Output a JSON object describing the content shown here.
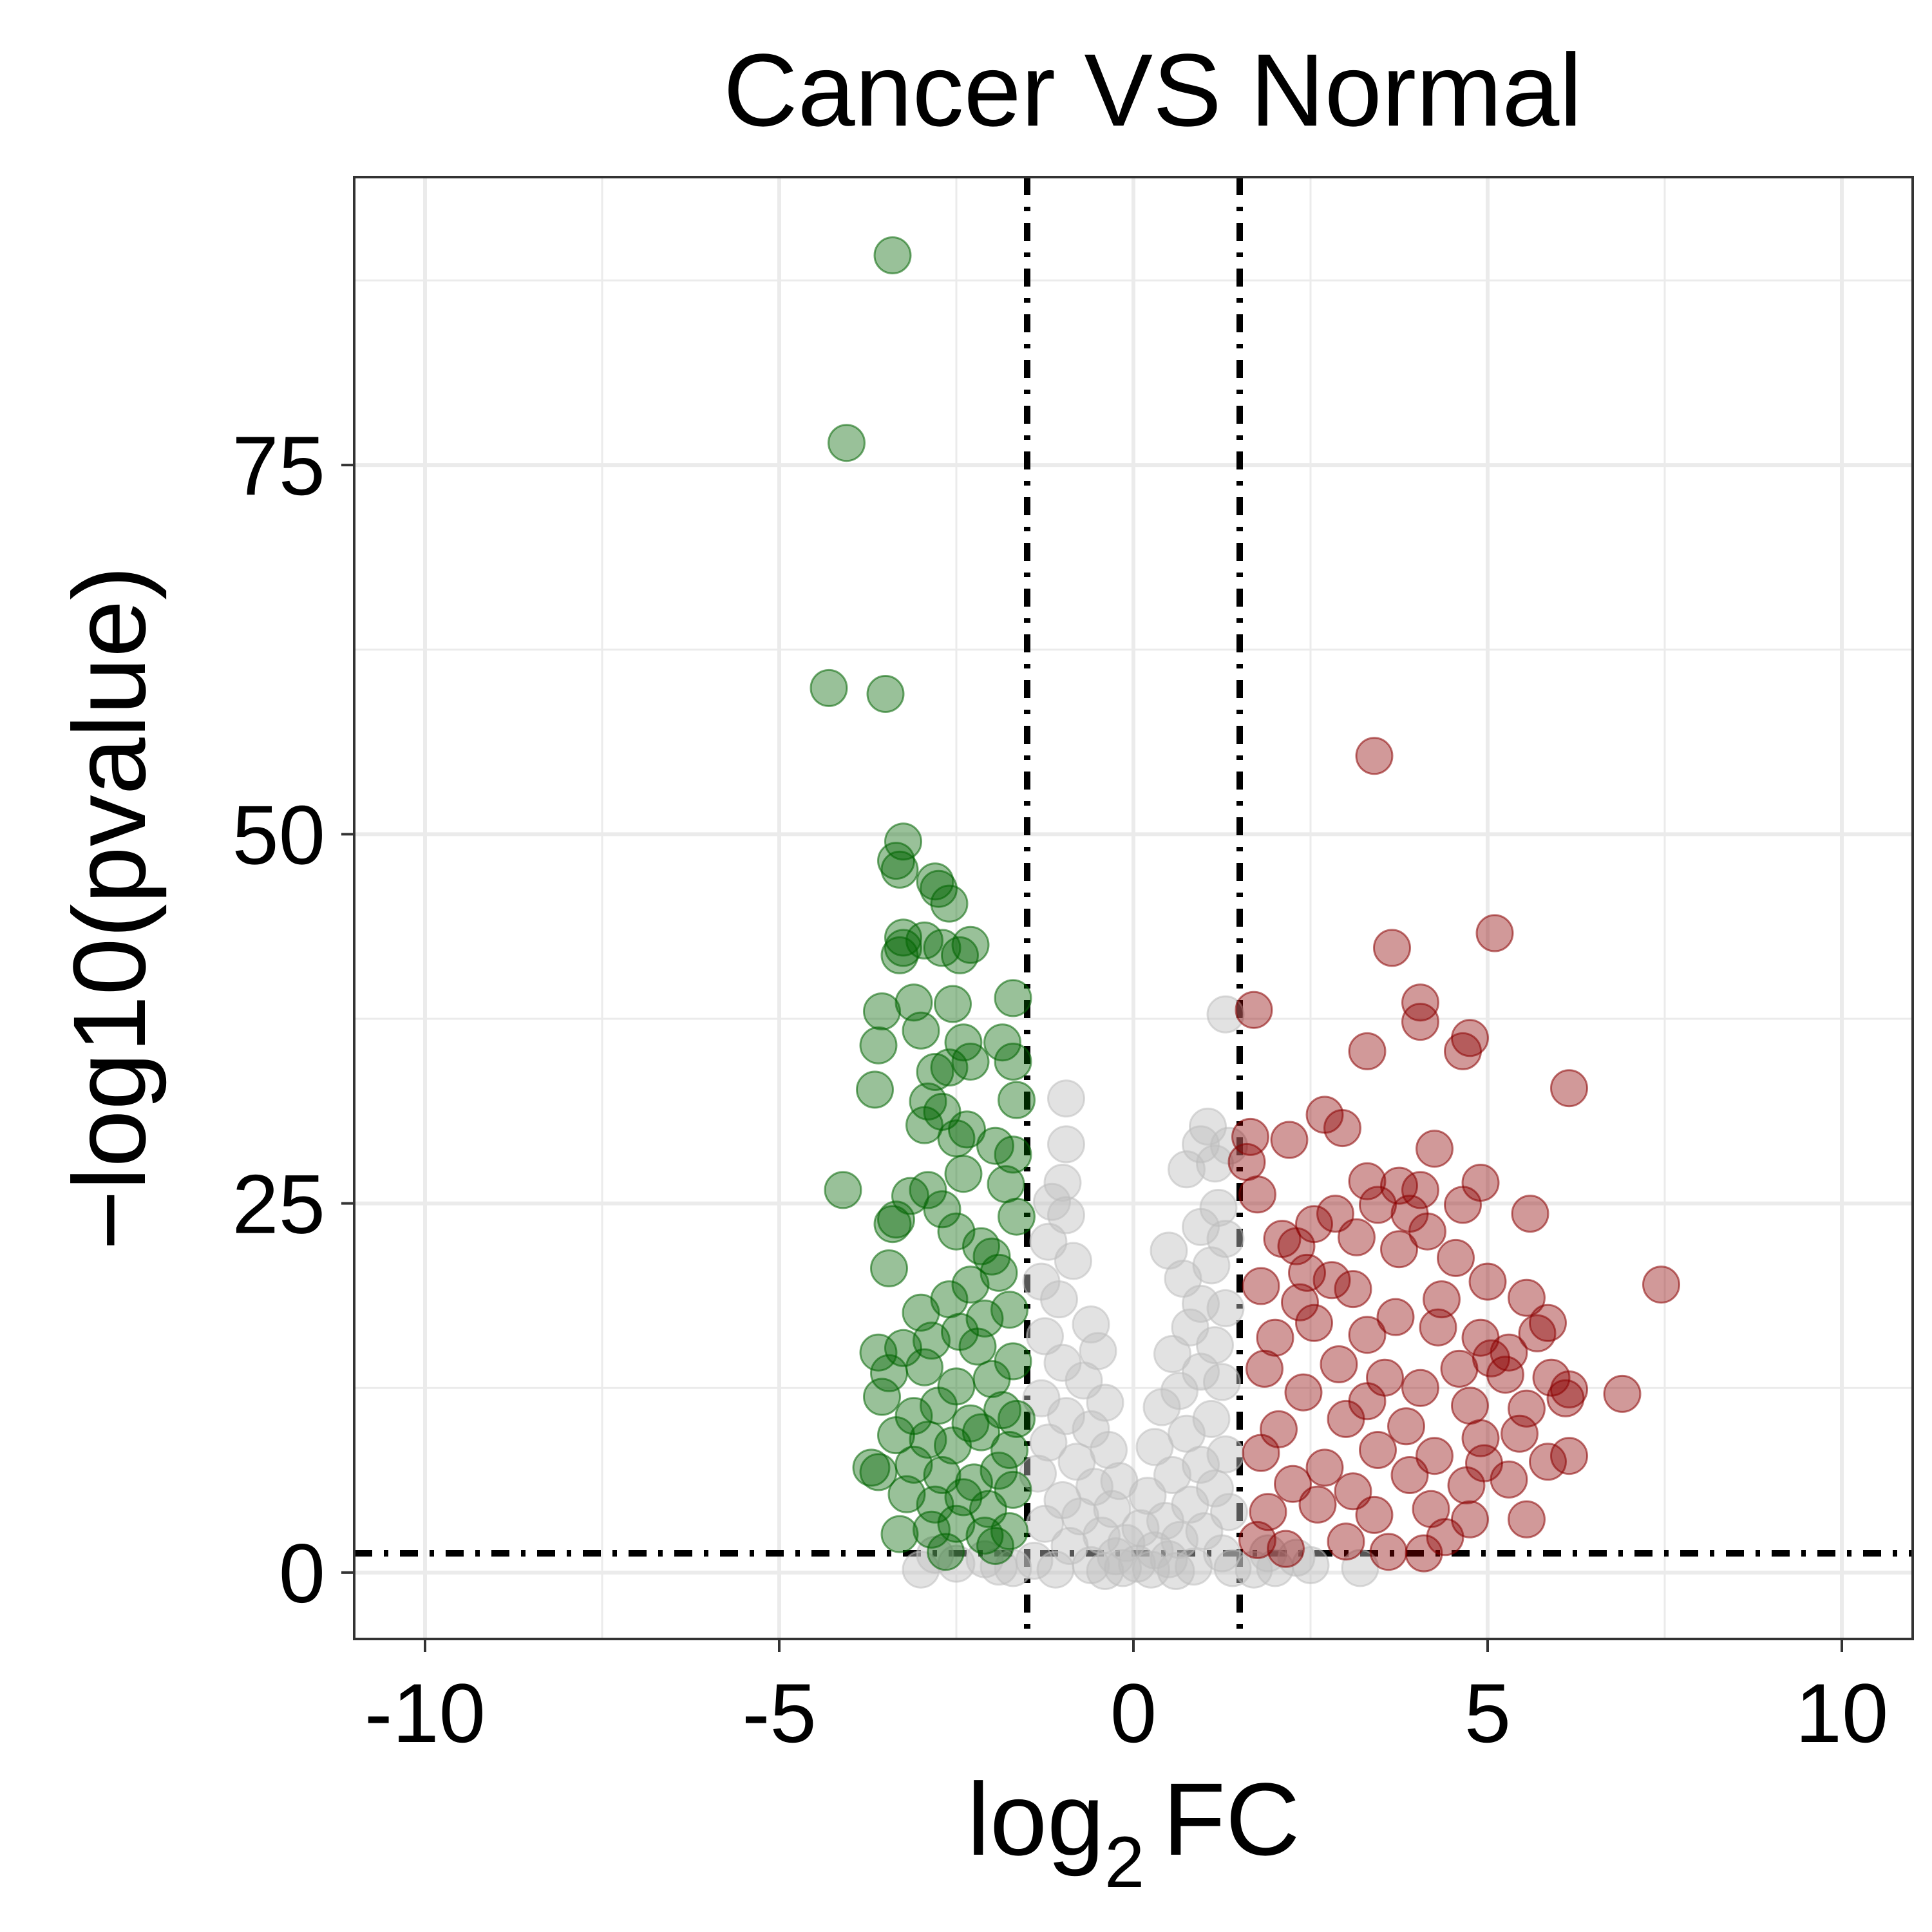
{
  "chart_data": {
    "type": "scatter",
    "title": "Cancer VS Normal",
    "xlabel": {
      "base": "log",
      "sub": "2",
      "rest": "FC"
    },
    "ylabel": "−log10(pvalue)",
    "xlim": [
      -11,
      11
    ],
    "ylim": [
      -4.5,
      94.5
    ],
    "x_ticks": [
      -10,
      -5,
      0,
      5,
      10
    ],
    "x_tick_labels": [
      "-10",
      "-5",
      "0",
      "5",
      "10"
    ],
    "y_ticks": [
      0,
      25,
      50,
      75
    ],
    "y_tick_labels": [
      "0",
      "25",
      "50",
      "75"
    ],
    "grid": true,
    "thresholds": {
      "log2fc": [
        -1.5,
        1.5
      ],
      "neg_log10_pvalue": 1.3
    },
    "colors": {
      "down": "#006400",
      "up": "#8B0000",
      "not_significant": "#BEBEBE",
      "reference_lines": "#000000"
    },
    "series": [
      {
        "group": "down",
        "points": [
          [
            -3.4,
            89.2
          ],
          [
            -4.05,
            76.5
          ],
          [
            -4.3,
            59.9
          ],
          [
            -3.5,
            59.5
          ],
          [
            -3.25,
            49.5
          ],
          [
            -3.35,
            48.2
          ],
          [
            -3.3,
            47.6
          ],
          [
            -2.8,
            46.8
          ],
          [
            -2.75,
            46.3
          ],
          [
            -2.6,
            45.3
          ],
          [
            -3.25,
            43.0
          ],
          [
            -2.95,
            42.8
          ],
          [
            -3.25,
            42.3
          ],
          [
            -3.3,
            41.8
          ],
          [
            -2.7,
            42.3
          ],
          [
            -2.3,
            42.5
          ],
          [
            -2.45,
            41.8
          ],
          [
            -3.55,
            38.0
          ],
          [
            -3.1,
            38.6
          ],
          [
            -2.55,
            38.5
          ],
          [
            -1.7,
            38.9
          ],
          [
            -3.6,
            35.7
          ],
          [
            -3.0,
            36.7
          ],
          [
            -2.4,
            35.9
          ],
          [
            -1.85,
            35.9
          ],
          [
            -3.65,
            32.7
          ],
          [
            -2.8,
            33.9
          ],
          [
            -2.6,
            34.2
          ],
          [
            -2.3,
            34.6
          ],
          [
            -1.7,
            34.6
          ],
          [
            -1.65,
            32.0
          ],
          [
            -2.9,
            31.9
          ],
          [
            -2.7,
            31.2
          ],
          [
            -2.95,
            30.3
          ],
          [
            -2.5,
            29.4
          ],
          [
            -2.35,
            30.0
          ],
          [
            -1.95,
            28.9
          ],
          [
            -1.7,
            28.3
          ],
          [
            -4.1,
            25.9
          ],
          [
            -3.4,
            23.6
          ],
          [
            -3.35,
            23.9
          ],
          [
            -3.45,
            20.6
          ],
          [
            -3.15,
            25.5
          ],
          [
            -2.9,
            25.9
          ],
          [
            -2.7,
            24.6
          ],
          [
            -2.5,
            23.1
          ],
          [
            -2.15,
            22.1
          ],
          [
            -1.8,
            26.3
          ],
          [
            -1.65,
            24.1
          ],
          [
            -1.9,
            20.3
          ],
          [
            -2.3,
            19.5
          ],
          [
            -2.6,
            18.5
          ],
          [
            -3.0,
            17.6
          ],
          [
            -3.6,
            14.9
          ],
          [
            -3.25,
            15.2
          ],
          [
            -2.85,
            15.7
          ],
          [
            -2.45,
            16.3
          ],
          [
            -2.1,
            17.2
          ],
          [
            -1.75,
            17.8
          ],
          [
            -3.45,
            13.5
          ],
          [
            -2.95,
            13.9
          ],
          [
            -2.5,
            12.6
          ],
          [
            -2.0,
            13.1
          ],
          [
            -1.7,
            14.3
          ],
          [
            -3.55,
            11.9
          ],
          [
            -3.1,
            10.6
          ],
          [
            -2.75,
            11.3
          ],
          [
            -2.3,
            10.1
          ],
          [
            -1.85,
            11.0
          ],
          [
            -1.65,
            10.4
          ],
          [
            -3.35,
            9.3
          ],
          [
            -2.9,
            9.0
          ],
          [
            -2.55,
            8.6
          ],
          [
            -2.15,
            9.5
          ],
          [
            -1.75,
            8.3
          ],
          [
            -3.7,
            7.1
          ],
          [
            -3.6,
            6.8
          ],
          [
            -3.1,
            7.3
          ],
          [
            -2.7,
            6.6
          ],
          [
            -2.25,
            6.1
          ],
          [
            -1.9,
            6.9
          ],
          [
            -3.2,
            5.3
          ],
          [
            -2.8,
            4.6
          ],
          [
            -2.4,
            5.1
          ],
          [
            -2.05,
            4.3
          ],
          [
            -1.7,
            5.6
          ],
          [
            -3.3,
            2.6
          ],
          [
            -2.85,
            2.9
          ],
          [
            -2.5,
            3.3
          ],
          [
            -2.1,
            2.5
          ],
          [
            -1.75,
            2.8
          ],
          [
            -2.65,
            1.4
          ],
          [
            -1.95,
            1.8
          ],
          [
            -2.2,
            15.3
          ],
          [
            -2.0,
            21.4
          ],
          [
            -2.4,
            27.0
          ]
        ]
      },
      {
        "group": "up",
        "points": [
          [
            3.4,
            55.3
          ],
          [
            5.1,
            43.3
          ],
          [
            3.65,
            42.3
          ],
          [
            4.05,
            38.6
          ],
          [
            4.05,
            37.3
          ],
          [
            4.75,
            36.2
          ],
          [
            4.65,
            35.3
          ],
          [
            3.3,
            35.3
          ],
          [
            1.7,
            38.1
          ],
          [
            6.15,
            32.8
          ],
          [
            2.7,
            31.0
          ],
          [
            2.95,
            30.1
          ],
          [
            2.2,
            29.3
          ],
          [
            1.65,
            29.5
          ],
          [
            4.25,
            28.7
          ],
          [
            1.6,
            27.8
          ],
          [
            3.3,
            26.5
          ],
          [
            3.75,
            26.2
          ],
          [
            4.9,
            26.4
          ],
          [
            4.05,
            25.9
          ],
          [
            1.75,
            25.6
          ],
          [
            3.45,
            24.9
          ],
          [
            4.65,
            24.9
          ],
          [
            5.6,
            24.3
          ],
          [
            2.55,
            23.6
          ],
          [
            2.85,
            24.3
          ],
          [
            3.9,
            24.3
          ],
          [
            4.15,
            23.1
          ],
          [
            3.15,
            22.7
          ],
          [
            2.3,
            22.1
          ],
          [
            3.75,
            21.9
          ],
          [
            4.55,
            21.3
          ],
          [
            7.45,
            19.5
          ],
          [
            5.0,
            19.7
          ],
          [
            5.55,
            18.6
          ],
          [
            4.35,
            18.5
          ],
          [
            3.1,
            19.2
          ],
          [
            2.35,
            18.3
          ],
          [
            1.8,
            19.4
          ],
          [
            5.85,
            16.9
          ],
          [
            5.7,
            16.2
          ],
          [
            4.9,
            15.9
          ],
          [
            4.3,
            16.6
          ],
          [
            3.7,
            17.3
          ],
          [
            2.55,
            16.9
          ],
          [
            5.3,
            14.9
          ],
          [
            5.05,
            14.5
          ],
          [
            5.25,
            13.4
          ],
          [
            5.9,
            13.2
          ],
          [
            6.15,
            12.4
          ],
          [
            6.1,
            11.8
          ],
          [
            6.9,
            12.1
          ],
          [
            4.6,
            13.8
          ],
          [
            3.55,
            13.2
          ],
          [
            2.9,
            14.1
          ],
          [
            1.85,
            13.8
          ],
          [
            5.55,
            11.1
          ],
          [
            4.75,
            11.3
          ],
          [
            4.05,
            12.5
          ],
          [
            3.3,
            11.6
          ],
          [
            2.4,
            12.2
          ],
          [
            5.45,
            9.4
          ],
          [
            4.9,
            9.1
          ],
          [
            3.85,
            9.9
          ],
          [
            3.0,
            10.4
          ],
          [
            2.05,
            9.7
          ],
          [
            6.15,
            7.9
          ],
          [
            5.85,
            7.5
          ],
          [
            4.95,
            7.4
          ],
          [
            4.25,
            7.9
          ],
          [
            3.45,
            8.3
          ],
          [
            2.7,
            7.1
          ],
          [
            1.8,
            8.1
          ],
          [
            5.3,
            6.3
          ],
          [
            4.7,
            5.9
          ],
          [
            3.9,
            6.6
          ],
          [
            3.1,
            5.5
          ],
          [
            2.25,
            6.0
          ],
          [
            5.55,
            3.6
          ],
          [
            4.75,
            3.6
          ],
          [
            4.2,
            4.3
          ],
          [
            3.4,
            3.9
          ],
          [
            2.6,
            4.6
          ],
          [
            1.9,
            4.1
          ],
          [
            2.15,
            1.6
          ],
          [
            4.1,
            1.3
          ],
          [
            3.6,
            1.4
          ],
          [
            4.4,
            2.4
          ],
          [
            3.0,
            2.1
          ],
          [
            1.75,
            2.2
          ],
          [
            2.1,
            22.6
          ],
          [
            2.45,
            20.3
          ],
          [
            2.0,
            15.9
          ],
          [
            3.3,
            16.1
          ],
          [
            2.8,
            19.8
          ]
        ]
      },
      {
        "group": "not_significant",
        "points": [
          [
            1.3,
            37.8
          ],
          [
            -0.95,
            32.1
          ],
          [
            -0.95,
            29.0
          ],
          [
            1.05,
            30.2
          ],
          [
            0.95,
            29.0
          ],
          [
            1.35,
            28.9
          ],
          [
            0.75,
            27.3
          ],
          [
            1.15,
            27.7
          ],
          [
            -1.0,
            26.4
          ],
          [
            -1.15,
            25.1
          ],
          [
            -0.95,
            24.2
          ],
          [
            1.2,
            24.7
          ],
          [
            0.95,
            23.4
          ],
          [
            1.3,
            22.6
          ],
          [
            0.5,
            21.8
          ],
          [
            -1.2,
            22.4
          ],
          [
            -0.85,
            21.1
          ],
          [
            1.1,
            20.8
          ],
          [
            0.7,
            19.9
          ],
          [
            -1.3,
            19.7
          ],
          [
            -1.05,
            18.5
          ],
          [
            0.95,
            18.2
          ],
          [
            1.3,
            17.9
          ],
          [
            -0.6,
            16.8
          ],
          [
            0.8,
            16.6
          ],
          [
            -1.25,
            16.0
          ],
          [
            1.15,
            15.4
          ],
          [
            -0.5,
            15.0
          ],
          [
            0.55,
            14.8
          ],
          [
            -1.0,
            14.2
          ],
          [
            0.95,
            13.6
          ],
          [
            -0.7,
            13.0
          ],
          [
            1.25,
            12.9
          ],
          [
            0.65,
            12.3
          ],
          [
            -1.3,
            11.8
          ],
          [
            -0.4,
            11.5
          ],
          [
            0.4,
            11.2
          ],
          [
            -0.95,
            10.6
          ],
          [
            1.1,
            10.4
          ],
          [
            -0.6,
            9.7
          ],
          [
            0.75,
            9.4
          ],
          [
            -1.2,
            8.8
          ],
          [
            0.3,
            8.5
          ],
          [
            -0.35,
            8.3
          ],
          [
            1.3,
            8.0
          ],
          [
            -0.8,
            7.5
          ],
          [
            0.95,
            7.3
          ],
          [
            -1.35,
            6.7
          ],
          [
            0.55,
            6.6
          ],
          [
            -0.2,
            6.2
          ],
          [
            -0.55,
            5.8
          ],
          [
            1.15,
            5.7
          ],
          [
            0.2,
            5.2
          ],
          [
            -1.0,
            4.9
          ],
          [
            0.8,
            4.6
          ],
          [
            -0.3,
            4.3
          ],
          [
            1.35,
            4.1
          ],
          [
            -0.75,
            3.8
          ],
          [
            0.45,
            3.5
          ],
          [
            -1.25,
            3.3
          ],
          [
            0.1,
            3.0
          ],
          [
            1.0,
            2.8
          ],
          [
            -0.45,
            2.5
          ],
          [
            0.65,
            2.2
          ],
          [
            -0.1,
            2.0
          ],
          [
            -0.9,
            1.8
          ],
          [
            0.3,
            1.5
          ],
          [
            1.25,
            1.3
          ],
          [
            -0.25,
            1.1
          ],
          [
            0.5,
            0.9
          ],
          [
            -1.4,
            0.8
          ],
          [
            0.05,
            0.6
          ],
          [
            -0.6,
            0.5
          ],
          [
            0.85,
            0.4
          ],
          [
            -0.15,
            0.3
          ],
          [
            0.25,
            0.2
          ],
          [
            -1.1,
            0.2
          ],
          [
            1.4,
            0.3
          ],
          [
            -0.4,
            0.1
          ],
          [
            0.6,
            0.1
          ],
          [
            -2.5,
            0.6
          ],
          [
            -1.9,
            0.4
          ],
          [
            2.5,
            0.5
          ],
          [
            2.0,
            0.3
          ],
          [
            3.2,
            0.3
          ],
          [
            -3.0,
            0.2
          ],
          [
            1.7,
            0.2
          ],
          [
            -1.7,
            0.3
          ],
          [
            -2.8,
            1.2
          ],
          [
            1.9,
            1.3
          ],
          [
            2.3,
            1.0
          ],
          [
            -2.1,
            0.9
          ]
        ]
      }
    ]
  }
}
